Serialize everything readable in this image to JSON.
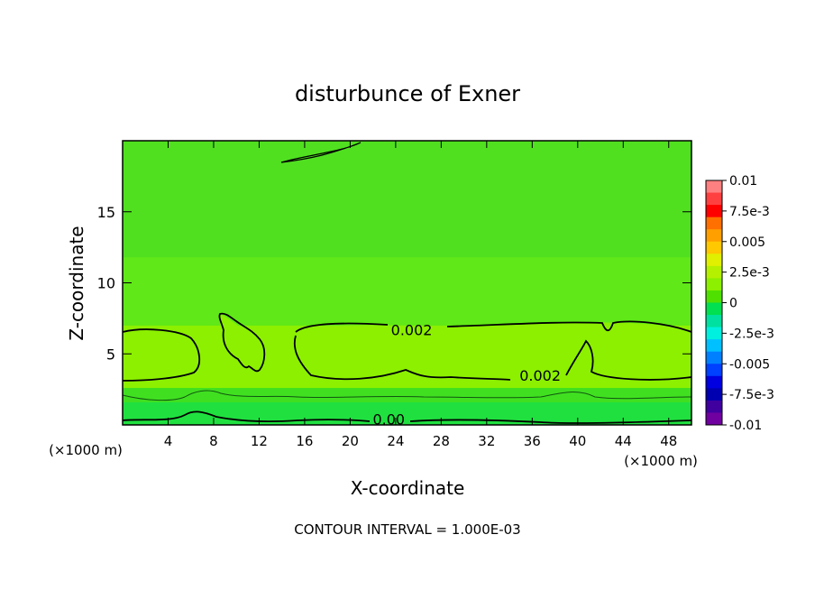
{
  "chart_data": {
    "type": "heatmap",
    "title": "disturbunce of Exner",
    "xlabel": "X-coordinate",
    "ylabel": "Z-coordinate",
    "x_unit": "(×1000 m)",
    "footer": "CONTOUR INTERVAL = 1.000E-03",
    "xlim": [
      0,
      50
    ],
    "ylim": [
      0,
      20
    ],
    "x_ticks": [
      4,
      8,
      12,
      16,
      20,
      24,
      28,
      32,
      36,
      40,
      44,
      48
    ],
    "y_ticks": [
      5,
      10,
      15
    ],
    "colorbar": {
      "min": -0.01,
      "max": 0.01,
      "labels": [
        "0.01",
        "7.5e-3",
        "0.005",
        "2.5e-3",
        "0",
        "-2.5e-3",
        "-0.005",
        "-7.5e-3",
        "-0.01"
      ],
      "label_values": [
        0.01,
        0.0075,
        0.005,
        0.0025,
        0,
        -0.0025,
        -0.005,
        -0.0075,
        -0.01
      ],
      "colors": [
        "#ff8080",
        "#ff4040",
        "#ff0000",
        "#ff7000",
        "#ffa000",
        "#ffc800",
        "#e0f000",
        "#b4f000",
        "#8cf000",
        "#50e000",
        "#00e050",
        "#00e0a0",
        "#00f0e0",
        "#00c0ff",
        "#0080ff",
        "#0040ff",
        "#0000e0",
        "#0000b0",
        "#4000a0",
        "#7000a0"
      ]
    },
    "bands": [
      {
        "z": [
          0.0,
          1.6
        ],
        "value": 0.0,
        "color": "#20e040"
      },
      {
        "z": [
          1.6,
          2.6
        ],
        "value": 0.0005,
        "color": "#40e020"
      },
      {
        "z": [
          2.6,
          7.0
        ],
        "value": 0.0025,
        "color": "#8cf000"
      },
      {
        "z": [
          7.0,
          11.8
        ],
        "value": 0.0015,
        "color": "#60e818"
      },
      {
        "z": [
          11.8,
          20.0
        ],
        "value": 0.001,
        "color": "#50e020"
      }
    ],
    "contour_labels": [
      {
        "text": "0.002",
        "x": 25.4,
        "z": 6.7
      },
      {
        "text": "0.002",
        "x": 36.7,
        "z": 3.5
      },
      {
        "text": "0.00",
        "x": 23.4,
        "z": 0.4
      }
    ]
  }
}
